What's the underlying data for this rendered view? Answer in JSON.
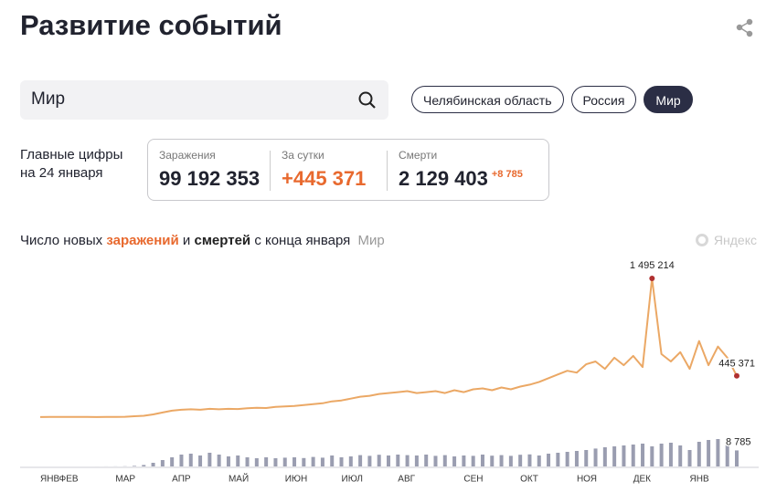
{
  "header": {
    "title": "Развитие событий"
  },
  "search": {
    "value": "Мир"
  },
  "regions": {
    "items": [
      "Челябинская область",
      "Россия",
      "Мир"
    ],
    "selected": 2
  },
  "summary": {
    "lines": [
      "Главные цифры",
      "на 24 января"
    ],
    "stats": [
      {
        "label": "Заражения",
        "value": "99 192 353"
      },
      {
        "label": "За сутки",
        "value": "+445 371"
      },
      {
        "label": "Смерти",
        "value": "2 129 403",
        "delta": "+8 785"
      }
    ]
  },
  "chart_data": {
    "type": "line",
    "title_parts": [
      "Число новых",
      "и",
      "с конца января"
    ],
    "subtitle": "Мир",
    "brand": "Яндекс",
    "categories": [
      "ЯНВ",
      null,
      "ФЕВ",
      null,
      null,
      null,
      null,
      null,
      "МАР",
      null,
      null,
      null,
      null,
      null,
      "АПР",
      null,
      null,
      null,
      null,
      null,
      "МАЙ",
      null,
      null,
      null,
      null,
      null,
      "ИЮН",
      null,
      null,
      null,
      null,
      null,
      "ИЮЛ",
      null,
      null,
      null,
      null,
      null,
      "АВГ",
      null,
      null,
      null,
      null,
      null,
      null,
      "СЕН",
      null,
      null,
      null,
      null,
      null,
      "ОКТ",
      null,
      null,
      null,
      null,
      null,
      "НОЯ",
      null,
      null,
      null,
      null,
      null,
      "ДЕК",
      null,
      null,
      null,
      null,
      null,
      "ЯНВ",
      null,
      null,
      null,
      null,
      null
    ],
    "series": [
      {
        "name": "заражений",
        "color": "#eba865",
        "label_color": "#e8692e",
        "values": [
          1000,
          3000,
          2000,
          3000,
          2000,
          2000,
          1000,
          2000,
          2000,
          4000,
          10000,
          15000,
          30000,
          50000,
          70000,
          80000,
          85000,
          80000,
          90000,
          85000,
          90000,
          88000,
          95000,
          100000,
          98000,
          110000,
          115000,
          120000,
          130000,
          140000,
          150000,
          170000,
          180000,
          200000,
          220000,
          230000,
          250000,
          260000,
          270000,
          280000,
          260000,
          270000,
          280000,
          260000,
          290000,
          270000,
          300000,
          310000,
          290000,
          320000,
          300000,
          330000,
          350000,
          380000,
          420000,
          460000,
          500000,
          480000,
          570000,
          600000,
          520000,
          640000,
          560000,
          660000,
          540000,
          1495214,
          680000,
          600000,
          700000,
          520000,
          820000,
          560000,
          760000,
          640000,
          445371
        ],
        "value_labels": [
          null,
          null,
          null,
          null,
          null,
          null,
          null,
          null,
          null,
          null,
          null,
          null,
          null,
          null,
          null,
          null,
          null,
          null,
          null,
          null,
          null,
          null,
          null,
          null,
          null,
          null,
          null,
          null,
          null,
          null,
          null,
          null,
          null,
          null,
          null,
          null,
          null,
          null,
          null,
          null,
          null,
          null,
          null,
          null,
          null,
          null,
          null,
          null,
          null,
          null,
          null,
          null,
          null,
          null,
          null,
          null,
          null,
          null,
          null,
          null,
          null,
          null,
          null,
          null,
          null,
          "1 495 214",
          null,
          null,
          null,
          null,
          null,
          null,
          null,
          null,
          "445 371"
        ]
      },
      {
        "name": "смертей",
        "type": "bar",
        "color": "#9a9db0",
        "label_color": "#222222",
        "values": [
          0,
          1,
          3,
          5,
          8,
          10,
          20,
          30,
          50,
          100,
          300,
          800,
          2000,
          3500,
          5000,
          6500,
          7000,
          6000,
          7500,
          6500,
          5500,
          6000,
          5000,
          4500,
          5000,
          4500,
          4800,
          5000,
          4600,
          5200,
          4800,
          6000,
          5000,
          5500,
          6200,
          5800,
          6400,
          6000,
          6500,
          6200,
          6000,
          6500,
          5800,
          6200,
          5500,
          6000,
          5800,
          6500,
          5900,
          6200,
          5800,
          6400,
          6600,
          6000,
          7000,
          7500,
          8000,
          8500,
          9000,
          9800,
          10500,
          11000,
          11500,
          12000,
          12500,
          11000,
          12500,
          13000,
          11500,
          9000,
          13500,
          14500,
          15000,
          12000,
          8785
        ],
        "value_labels": [
          null,
          null,
          null,
          null,
          null,
          null,
          null,
          null,
          null,
          null,
          null,
          null,
          null,
          null,
          null,
          null,
          null,
          null,
          null,
          null,
          null,
          null,
          null,
          null,
          null,
          null,
          null,
          null,
          null,
          null,
          null,
          null,
          null,
          null,
          null,
          null,
          null,
          null,
          null,
          null,
          null,
          null,
          null,
          null,
          null,
          null,
          null,
          null,
          null,
          null,
          null,
          null,
          null,
          null,
          null,
          null,
          null,
          null,
          null,
          null,
          null,
          null,
          null,
          null,
          null,
          null,
          null,
          null,
          null,
          null,
          null,
          null,
          null,
          null,
          "8 785"
        ]
      }
    ],
    "point_color": "#b03030",
    "grid": false
  }
}
